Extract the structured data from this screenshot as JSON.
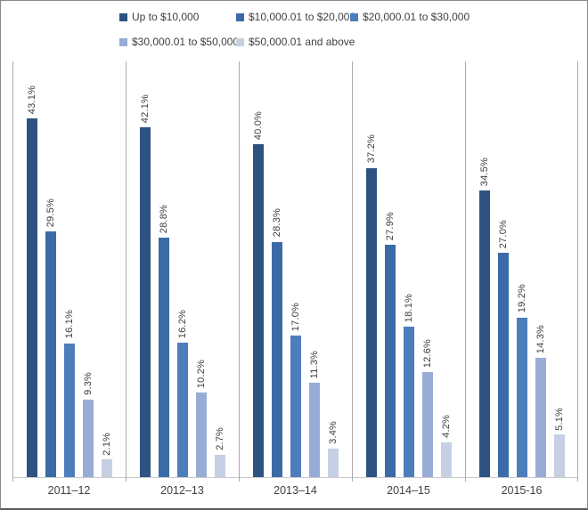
{
  "chart_data": {
    "type": "bar",
    "title": "",
    "xlabel": "",
    "ylabel": "",
    "ylim": [
      0,
      50
    ],
    "legend_position": "top",
    "grid": "vertical-category-separators",
    "data_labels": "rotated 90deg, percent with one decimal",
    "categories": [
      "2011–12",
      "2012–13",
      "2013–14",
      "2014–15",
      "2015-16"
    ],
    "series": [
      {
        "name": "Up to $10,000",
        "color": "#2E5380",
        "values": [
          43.1,
          42.1,
          40.0,
          37.2,
          34.5
        ]
      },
      {
        "name": "$10,000.01 to $20,000",
        "color": "#3A6BA6",
        "values": [
          29.5,
          28.8,
          28.3,
          27.9,
          27.0
        ]
      },
      {
        "name": "$20,000.01 to $30,000",
        "color": "#4E7DBB",
        "values": [
          16.1,
          16.2,
          17.0,
          18.1,
          19.2
        ]
      },
      {
        "name": "$30,000.01 to $50,000",
        "color": "#98ACD5",
        "values": [
          9.3,
          10.2,
          11.3,
          12.6,
          14.3
        ]
      },
      {
        "name": "$50,000.01 and above",
        "color": "#C6D0E5",
        "values": [
          2.1,
          2.7,
          3.4,
          4.2,
          5.1
        ]
      }
    ]
  },
  "colors": {
    "axis_line": "#C9C9C9",
    "separator_line": "#ABABAB",
    "data_label_text": "#3D3D3D",
    "category_label_text": "#404040",
    "legend_text": "#404040",
    "frame_border": "#898989",
    "background": "#FFFFFF"
  }
}
